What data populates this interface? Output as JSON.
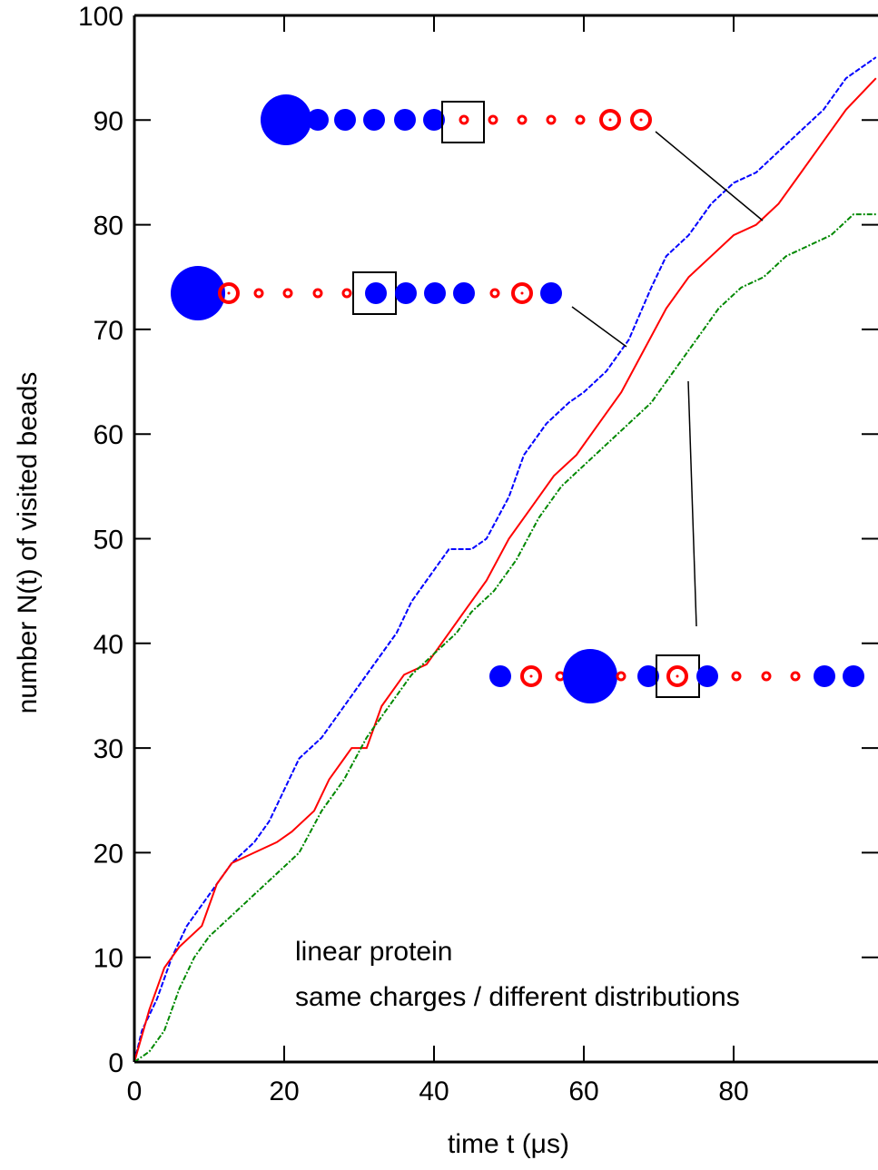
{
  "chart_data": {
    "type": "line",
    "xlabel": "time t  (μs)",
    "ylabel": "number N(t) of visited beads",
    "annotations": [
      "linear protein",
      "same charges / different distributions"
    ],
    "xlim": [
      0,
      99
    ],
    "ylim": [
      0,
      100
    ],
    "xticks": [
      0,
      20,
      40,
      60,
      80
    ],
    "yticks": [
      0,
      10,
      20,
      30,
      40,
      50,
      60,
      70,
      80,
      90,
      100
    ],
    "series": [
      {
        "color": "#0000ff",
        "dash": "6,2",
        "x": [
          0,
          1,
          3,
          5,
          7,
          10,
          13,
          16,
          18,
          20,
          22,
          25,
          27,
          30,
          32,
          35,
          37,
          40,
          42,
          45,
          47,
          50,
          52,
          55,
          58,
          60,
          63,
          66,
          69,
          71,
          74,
          77,
          80,
          83,
          86,
          89,
          92,
          95,
          99
        ],
        "y": [
          0,
          3,
          6,
          10,
          13,
          16,
          19,
          21,
          23,
          26,
          29,
          31,
          33,
          36,
          38,
          41,
          44,
          47,
          49,
          49,
          50,
          54,
          58,
          61,
          63,
          64,
          66,
          69,
          74,
          77,
          79,
          82,
          84,
          85,
          87,
          89,
          91,
          94,
          96
        ]
      },
      {
        "color": "#ff0000",
        "x": [
          0,
          2,
          4,
          6,
          9,
          11,
          13,
          16,
          19,
          21,
          24,
          26,
          29,
          31,
          33,
          36,
          39,
          41,
          44,
          47,
          50,
          53,
          56,
          59,
          62,
          65,
          68,
          71,
          74,
          77,
          80,
          83,
          86,
          89,
          92,
          95,
          99
        ],
        "y": [
          0,
          5,
          9,
          11,
          13,
          17,
          19,
          20,
          21,
          22,
          24,
          27,
          30,
          30,
          34,
          37,
          38,
          40,
          43,
          46,
          50,
          53,
          56,
          58,
          61,
          64,
          68,
          72,
          75,
          77,
          79,
          80,
          82,
          85,
          88,
          91,
          94
        ]
      },
      {
        "color": "#008800",
        "dash": "6,2,2,2",
        "x": [
          0,
          2,
          4,
          6,
          8,
          10,
          13,
          16,
          19,
          22,
          25,
          28,
          31,
          34,
          37,
          40,
          43,
          45,
          48,
          51,
          54,
          57,
          60,
          63,
          66,
          69,
          72,
          75,
          78,
          81,
          84,
          87,
          90,
          93,
          96,
          99
        ],
        "y": [
          0,
          1,
          3,
          7,
          10,
          12,
          14,
          16,
          18,
          20,
          24,
          27,
          31,
          34,
          37,
          39,
          41,
          43,
          45,
          48,
          52,
          55,
          57,
          59,
          61,
          63,
          66,
          69,
          72,
          74,
          75,
          77,
          78,
          79,
          81,
          81
        ]
      }
    ]
  }
}
